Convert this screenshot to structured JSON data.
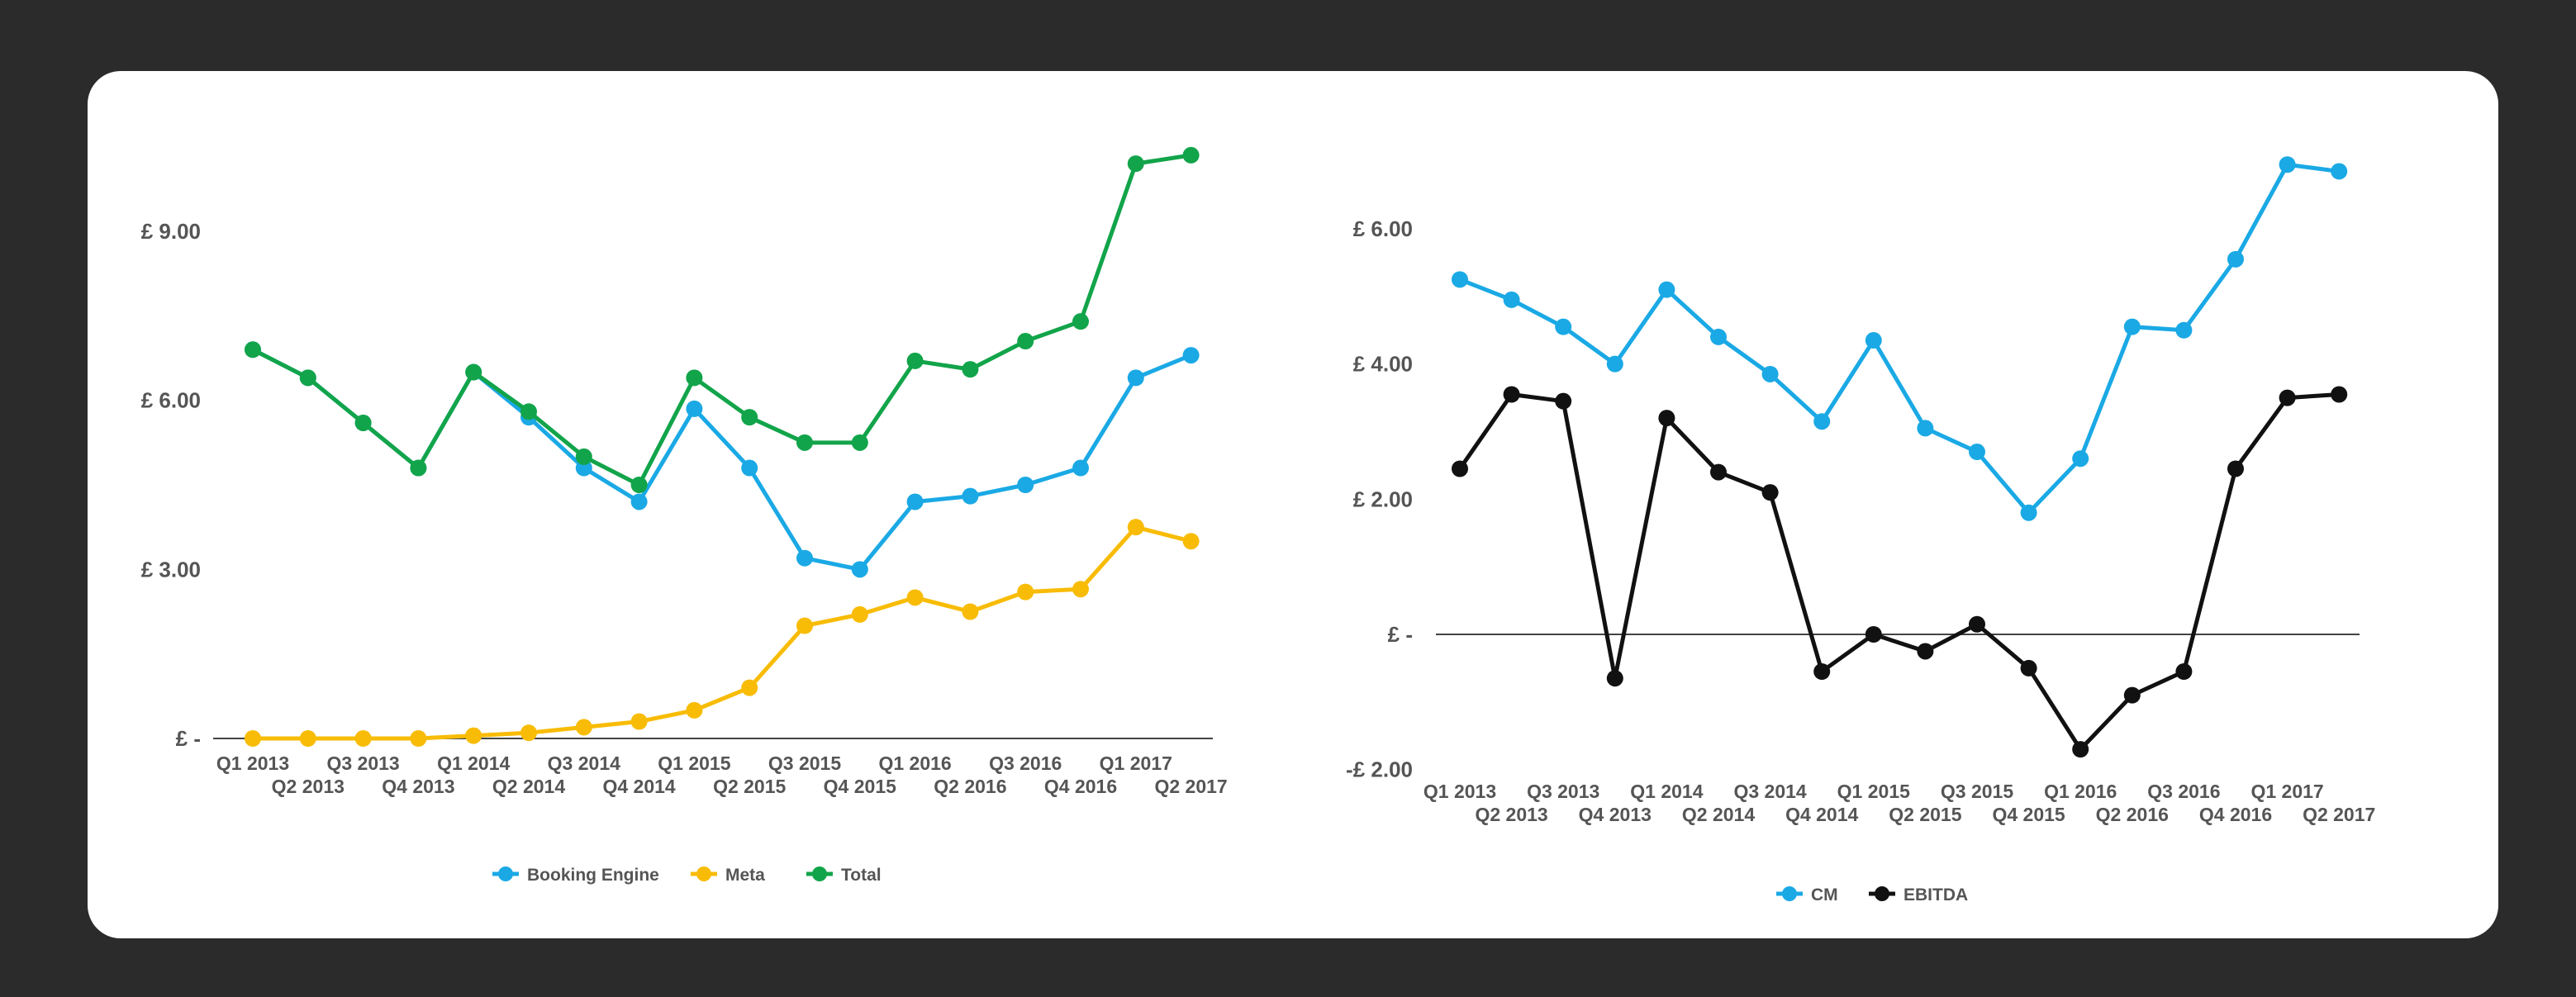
{
  "chart_data": [
    {
      "type": "line",
      "title": "",
      "xlabel": "",
      "ylabel": "",
      "categories": [
        "Q1 2013",
        "Q2 2013",
        "Q3 2013",
        "Q4 2013",
        "Q1 2014",
        "Q2 2014",
        "Q3 2014",
        "Q4 2014",
        "Q1 2015",
        "Q2 2015",
        "Q3 2015",
        "Q4 2015",
        "Q1 2016",
        "Q2 2016",
        "Q3 2016",
        "Q4 2016",
        "Q1 2017",
        "Q2 2017"
      ],
      "ylim": [
        0,
        10.5
      ],
      "y_ticks": [
        0,
        3,
        6,
        9
      ],
      "y_tick_labels": [
        "£ -",
        "£ 3.00",
        "£ 6.00",
        "£ 9.00"
      ],
      "grid": false,
      "legend_position": "bottom",
      "series": [
        {
          "name": "Booking Engine",
          "color": "#1aa9e5",
          "values": [
            6.9,
            6.4,
            5.6,
            4.8,
            6.5,
            5.7,
            4.8,
            4.2,
            5.85,
            4.8,
            3.2,
            3.0,
            4.2,
            4.3,
            4.5,
            4.8,
            6.4,
            6.8
          ]
        },
        {
          "name": "Meta",
          "color": "#f8bc06",
          "values": [
            0.0,
            0.0,
            0.0,
            0.0,
            0.05,
            0.1,
            0.2,
            0.3,
            0.5,
            0.9,
            2.0,
            2.2,
            2.5,
            2.25,
            2.6,
            2.65,
            3.75,
            3.5
          ]
        },
        {
          "name": "Total",
          "color": "#12a44a",
          "values": [
            6.9,
            6.4,
            5.6,
            4.8,
            6.5,
            5.8,
            5.0,
            4.5,
            6.4,
            5.7,
            5.25,
            5.25,
            6.7,
            6.55,
            7.05,
            7.4,
            10.2,
            10.35
          ]
        }
      ]
    },
    {
      "type": "line",
      "title": "",
      "xlabel": "",
      "ylabel": "",
      "categories": [
        "Q1 2013",
        "Q2 2013",
        "Q3 2013",
        "Q4 2013",
        "Q1 2014",
        "Q2 2014",
        "Q3 2014",
        "Q4 2014",
        "Q1 2015",
        "Q2 2015",
        "Q3 2015",
        "Q4 2015",
        "Q1 2016",
        "Q2 2016",
        "Q3 2016",
        "Q4 2016",
        "Q1 2017",
        "Q2 2017"
      ],
      "ylim": [
        -2,
        7
      ],
      "y_ticks": [
        -2,
        0,
        2,
        4,
        6
      ],
      "y_tick_labels": [
        "-£ 2.00",
        "£ -",
        "£ 2.00",
        "£ 4.00",
        "£ 6.00"
      ],
      "grid": false,
      "legend_position": "bottom",
      "series": [
        {
          "name": "CM",
          "color": "#1aa9e5",
          "values": [
            5.25,
            4.95,
            4.55,
            4.0,
            5.1,
            4.4,
            3.85,
            3.15,
            4.35,
            3.05,
            2.7,
            1.8,
            2.6,
            4.55,
            4.5,
            5.55,
            6.95,
            6.85
          ]
        },
        {
          "name": "EBITDA",
          "color": "#111111",
          "values": [
            2.45,
            3.55,
            3.45,
            -0.65,
            3.2,
            2.4,
            2.1,
            -0.55,
            0.0,
            -0.25,
            0.15,
            -0.5,
            -1.7,
            -0.9,
            -0.55,
            2.45,
            3.5,
            3.55
          ]
        }
      ]
    }
  ]
}
